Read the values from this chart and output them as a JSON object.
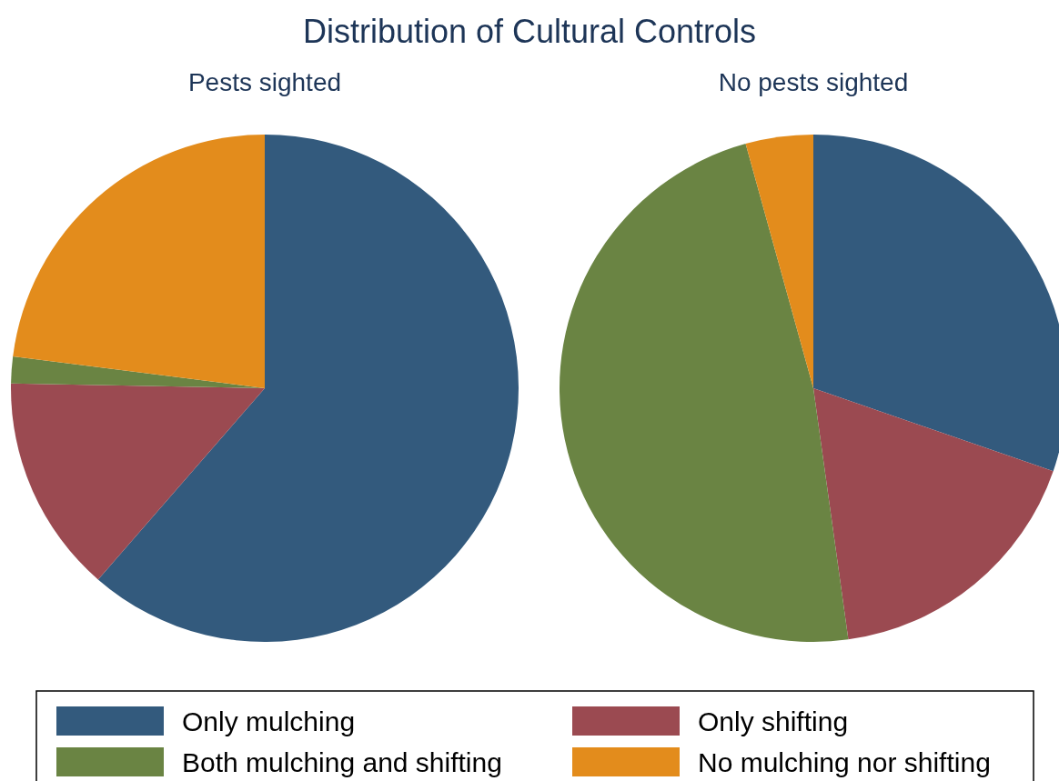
{
  "chart_data": [
    {
      "type": "pie",
      "title": "Distribution of Cultural Controls",
      "subtitle": "Pests sighted",
      "categories": [
        "Only mulching",
        "Only shifting",
        "Both mulching and shifting",
        "No mulching nor shifting"
      ],
      "values": [
        61.4,
        13.9,
        1.7,
        23.0
      ],
      "colors": [
        "#335a7d",
        "#9b4a51",
        "#6a8443",
        "#e38c1c"
      ],
      "legend": "bottom"
    },
    {
      "type": "pie",
      "subtitle": "No pests sighted",
      "categories": [
        null,
        null,
        null,
        null
      ],
      "values": [
        30.3,
        17.5,
        47.9,
        4.3
      ],
      "colors": [
        "#335a7d",
        "#9b4a51",
        "#6a8443",
        "#e38c1c"
      ]
    }
  ]
}
